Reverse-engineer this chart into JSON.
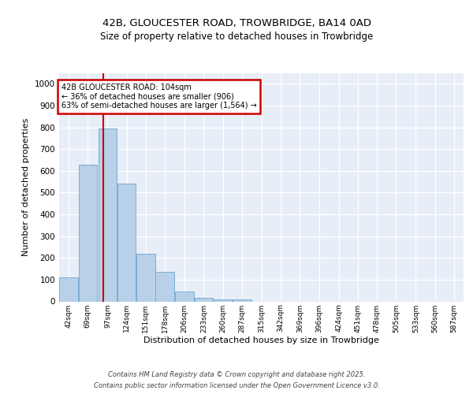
{
  "title1": "42B, GLOUCESTER ROAD, TROWBRIDGE, BA14 0AD",
  "title2": "Size of property relative to detached houses in Trowbridge",
  "xlabel": "Distribution of detached houses by size in Trowbridge",
  "ylabel": "Number of detached properties",
  "bin_labels": [
    "42sqm",
    "69sqm",
    "97sqm",
    "124sqm",
    "151sqm",
    "178sqm",
    "206sqm",
    "233sqm",
    "260sqm",
    "287sqm",
    "315sqm",
    "342sqm",
    "369sqm",
    "396sqm",
    "424sqm",
    "451sqm",
    "478sqm",
    "505sqm",
    "533sqm",
    "560sqm",
    "587sqm"
  ],
  "bin_edges": [
    42,
    69,
    97,
    124,
    151,
    178,
    206,
    233,
    260,
    287,
    315,
    342,
    369,
    396,
    424,
    451,
    478,
    505,
    533,
    560,
    587
  ],
  "bar_heights": [
    110,
    630,
    795,
    540,
    220,
    135,
    45,
    15,
    10,
    10,
    0,
    0,
    0,
    0,
    0,
    0,
    0,
    0,
    0,
    0
  ],
  "bar_color": "#b8d0e8",
  "bar_edge_color": "#7aacd4",
  "property_size": 104,
  "red_line_color": "#cc0000",
  "annotation_line1": "42B GLOUCESTER ROAD: 104sqm",
  "annotation_line2": "← 36% of detached houses are smaller (906)",
  "annotation_line3": "63% of semi-detached houses are larger (1,564) →",
  "annotation_box_color": "#cc0000",
  "ylim": [
    0,
    1050
  ],
  "yticks": [
    0,
    100,
    200,
    300,
    400,
    500,
    600,
    700,
    800,
    900,
    1000
  ],
  "background_color": "#e8eef8",
  "footer1": "Contains HM Land Registry data © Crown copyright and database right 2025.",
  "footer2": "Contains public sector information licensed under the Open Government Licence v3.0."
}
